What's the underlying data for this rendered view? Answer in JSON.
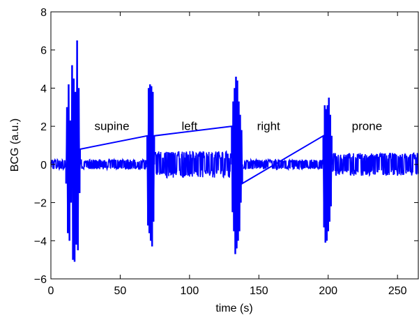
{
  "chart_data": {
    "type": "line",
    "title": "",
    "xlabel": "time (s)",
    "ylabel": "BCG (a.u.)",
    "xlim": [
      0,
      265
    ],
    "ylim": [
      -6,
      8
    ],
    "xticks": [
      "0",
      "50",
      "100",
      "150",
      "200",
      "250"
    ],
    "yticks": [
      "−6",
      "−4",
      "−2",
      "0",
      "2",
      "4",
      "6",
      "8"
    ],
    "grid": false,
    "legend": "none",
    "line_color": "#0000ff",
    "annotations": [
      {
        "text": "supine",
        "x": 44,
        "y": 1.8
      },
      {
        "text": "left",
        "x": 100,
        "y": 1.8
      },
      {
        "text": "right",
        "x": 157,
        "y": 1.8
      },
      {
        "text": "prone",
        "x": 228,
        "y": 1.8
      }
    ],
    "series": [
      {
        "segments": [
          {
            "x_start": 0,
            "x_end": 11,
            "baseline": 0.25
          },
          {
            "x_start": 21,
            "x_end": 69,
            "baseline": 0.25
          },
          {
            "x_start": 75,
            "x_end": 130,
            "baseline": 0.7
          },
          {
            "x_start": 139,
            "x_end": 196,
            "baseline": 0.25
          },
          {
            "x_start": 203,
            "x_end": 265,
            "baseline": 0.6
          }
        ],
        "spikes": [
          {
            "x": 11.0,
            "y": -1.0
          },
          {
            "x": 11.6,
            "y": 3.0
          },
          {
            "x": 12.2,
            "y": -3.6
          },
          {
            "x": 12.8,
            "y": 4.2
          },
          {
            "x": 13.4,
            "y": -4.0
          },
          {
            "x": 14.0,
            "y": 2.3
          },
          {
            "x": 14.6,
            "y": -2.0
          },
          {
            "x": 15.3,
            "y": 5.2
          },
          {
            "x": 15.9,
            "y": -5.0
          },
          {
            "x": 16.5,
            "y": 4.5
          },
          {
            "x": 17.1,
            "y": -5.1
          },
          {
            "x": 17.7,
            "y": 3.8
          },
          {
            "x": 18.3,
            "y": -4.2
          },
          {
            "x": 18.9,
            "y": 6.5
          },
          {
            "x": 19.5,
            "y": -4.5
          },
          {
            "x": 20.1,
            "y": 4.0
          },
          {
            "x": 20.7,
            "y": -1.5
          },
          {
            "x": 21.0,
            "y": 0.8
          },
          {
            "x": 69.5,
            "y": 1.5
          },
          {
            "x": 70.0,
            "y": -3.2
          },
          {
            "x": 70.5,
            "y": 4.0
          },
          {
            "x": 71.0,
            "y": -3.6
          },
          {
            "x": 71.5,
            "y": 4.2
          },
          {
            "x": 72.0,
            "y": -4.0
          },
          {
            "x": 72.5,
            "y": 4.1
          },
          {
            "x": 73.0,
            "y": -4.3
          },
          {
            "x": 73.5,
            "y": 3.8
          },
          {
            "x": 74.0,
            "y": -3.0
          },
          {
            "x": 74.5,
            "y": 1.5
          },
          {
            "x": 130.5,
            "y": 2.0
          },
          {
            "x": 131.0,
            "y": -2.5
          },
          {
            "x": 131.5,
            "y": 3.3
          },
          {
            "x": 132.0,
            "y": -3.5
          },
          {
            "x": 132.5,
            "y": 4.0
          },
          {
            "x": 133.0,
            "y": -4.7
          },
          {
            "x": 133.5,
            "y": 4.6
          },
          {
            "x": 134.0,
            "y": -4.4
          },
          {
            "x": 134.5,
            "y": 4.4
          },
          {
            "x": 135.0,
            "y": -4.0
          },
          {
            "x": 135.5,
            "y": 3.3
          },
          {
            "x": 136.0,
            "y": -3.5
          },
          {
            "x": 136.5,
            "y": 2.6
          },
          {
            "x": 137.0,
            "y": -2.0
          },
          {
            "x": 137.5,
            "y": 1.8
          },
          {
            "x": 138.0,
            "y": -1.0
          },
          {
            "x": 196.5,
            "y": 1.5
          },
          {
            "x": 197.0,
            "y": -3.3
          },
          {
            "x": 197.5,
            "y": 3.1
          },
          {
            "x": 198.0,
            "y": -4.1
          },
          {
            "x": 198.5,
            "y": 2.9
          },
          {
            "x": 199.0,
            "y": -4.0
          },
          {
            "x": 199.5,
            "y": 3.1
          },
          {
            "x": 200.0,
            "y": -3.5
          },
          {
            "x": 200.5,
            "y": 3.5
          },
          {
            "x": 201.0,
            "y": -3.0
          },
          {
            "x": 201.5,
            "y": 2.6
          },
          {
            "x": 202.0,
            "y": -2.2
          },
          {
            "x": 202.5,
            "y": 1.5
          }
        ]
      }
    ]
  }
}
